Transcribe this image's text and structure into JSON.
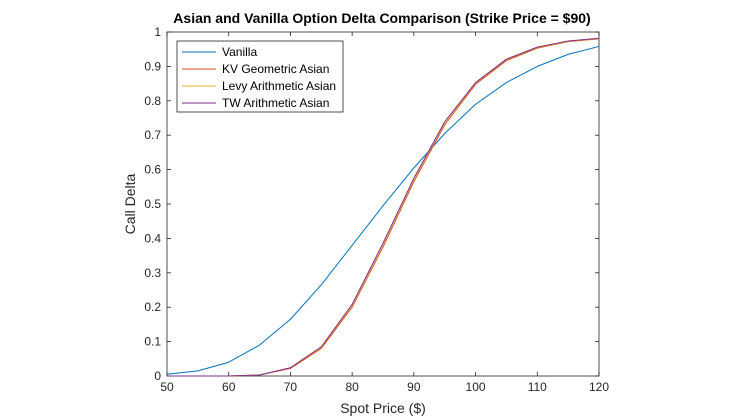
{
  "chart_data": {
    "type": "line",
    "title": "Asian and Vanilla Option Delta Comparison (Strike Price = $90)",
    "xlabel": "Spot Price ($)",
    "ylabel": "Call Delta",
    "xlim": [
      50,
      120
    ],
    "ylim": [
      0,
      1
    ],
    "x_ticks": [
      "50",
      "60",
      "70",
      "80",
      "90",
      "100",
      "110",
      "120"
    ],
    "y_ticks": [
      "0",
      "0.1",
      "0.2",
      "0.3",
      "0.4",
      "0.5",
      "0.6",
      "0.7",
      "0.8",
      "0.9",
      "1"
    ],
    "grid": false,
    "legend_position": "top-left",
    "x": [
      50,
      55,
      60,
      65,
      70,
      75,
      80,
      85,
      90,
      95,
      100,
      105,
      110,
      115,
      120
    ],
    "series": [
      {
        "name": "Vanilla",
        "color": "#0072BD",
        "values": [
          0.005,
          0.015,
          0.04,
          0.09,
          0.165,
          0.265,
          0.38,
          0.495,
          0.605,
          0.705,
          0.79,
          0.853,
          0.9,
          0.935,
          0.958
        ]
      },
      {
        "name": "KV Geometric Asian",
        "color": "#D95319",
        "values": [
          0.0,
          0.0,
          0.0,
          0.003,
          0.022,
          0.08,
          0.2,
          0.375,
          0.565,
          0.73,
          0.848,
          0.917,
          0.953,
          0.972,
          0.98
        ]
      },
      {
        "name": "Levy Arithmetic Asian",
        "color": "#EDB120",
        "values": [
          0.0,
          0.0,
          0.0,
          0.003,
          0.024,
          0.084,
          0.207,
          0.384,
          0.573,
          0.737,
          0.852,
          0.92,
          0.955,
          0.973,
          0.981
        ]
      },
      {
        "name": "TW Arithmetic Asian",
        "color": "#7E2F8E",
        "values": [
          0.0,
          0.0,
          0.0,
          0.003,
          0.024,
          0.085,
          0.208,
          0.386,
          0.575,
          0.739,
          0.853,
          0.921,
          0.956,
          0.974,
          0.982
        ]
      }
    ]
  }
}
